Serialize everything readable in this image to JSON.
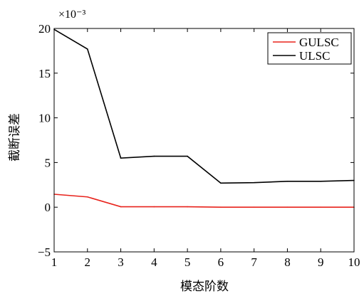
{
  "chart_data": {
    "type": "line",
    "xlabel": "模态阶数",
    "ylabel": "截断误差",
    "scale_label": "×10⁻³",
    "x": [
      1,
      2,
      3,
      4,
      5,
      6,
      7,
      8,
      9,
      10
    ],
    "xlim": [
      1,
      10
    ],
    "ylim": [
      -5,
      20
    ],
    "xticks": [
      "1",
      "2",
      "3",
      "4",
      "5",
      "6",
      "7",
      "8",
      "9",
      "10"
    ],
    "yticks": [
      "−5",
      "0",
      "5",
      "10",
      "15",
      "20"
    ],
    "ytick_values": [
      -5,
      0,
      5,
      10,
      15,
      20
    ],
    "grid": false,
    "legend_position": "top-right",
    "series": [
      {
        "name": "GULSC",
        "color": "#e8231c",
        "values": [
          1.45,
          1.15,
          0.05,
          0.05,
          0.05,
          0.0,
          0.0,
          0.0,
          0.0,
          0.0
        ]
      },
      {
        "name": "ULSC",
        "color": "#000000",
        "values": [
          19.9,
          17.7,
          5.5,
          5.7,
          5.7,
          2.7,
          2.75,
          2.9,
          2.9,
          3.0
        ]
      }
    ]
  }
}
